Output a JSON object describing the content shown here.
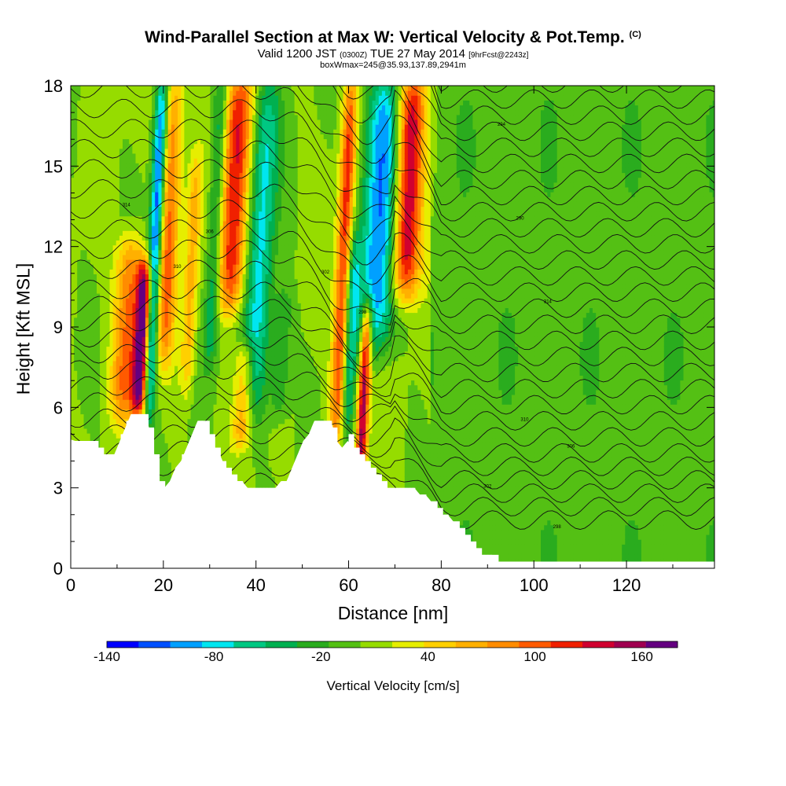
{
  "header": {
    "title": "Wind-Parallel Section at Max W: Vertical Velocity & Pot.Temp.",
    "title_mark": "(C)",
    "subtitle_a": "Valid 1200 JST",
    "subtitle_b": "(0300Z)",
    "subtitle_c": "TUE 27 May 2014",
    "subtitle_d": "[9hrFcst@2243z]",
    "subtitle_2": "boxWmax=245@35.93,137.89,2941m"
  },
  "chart_data": {
    "type": "heatmap",
    "xlabel": "Distance [nm]",
    "ylabel": "Height [Kft MSL]",
    "xlim": [
      0,
      139
    ],
    "ylim": [
      0,
      18
    ],
    "x_ticks": [
      0,
      20,
      40,
      60,
      80,
      100,
      120
    ],
    "y_ticks": [
      0,
      3,
      6,
      9,
      12,
      15,
      18
    ],
    "colorbar": {
      "label": "Vertical Velocity [cm/s]",
      "tick_labels": [
        "-140",
        "-80",
        "-20",
        "40",
        "100",
        "160"
      ],
      "tick_values": [
        -140,
        -80,
        -20,
        40,
        100,
        160
      ],
      "colors": [
        "#0000ff",
        "#0050ff",
        "#00a0ff",
        "#00e6f0",
        "#00c882",
        "#00b050",
        "#2aac1e",
        "#54c014",
        "#96dc00",
        "#e6ee00",
        "#ffd000",
        "#ffb000",
        "#ff8c00",
        "#ff5a00",
        "#f02000",
        "#d00030",
        "#a00050",
        "#640080"
      ],
      "range": [
        -140,
        180
      ]
    },
    "terrain_kft": [
      [
        0,
        4.8
      ],
      [
        4,
        4.8
      ],
      [
        6,
        4.5
      ],
      [
        9,
        4.0
      ],
      [
        11,
        5.0
      ],
      [
        13,
        5.8
      ],
      [
        16,
        5.8
      ],
      [
        17,
        5.2
      ],
      [
        19,
        3.3
      ],
      [
        21,
        3.0
      ],
      [
        23,
        3.8
      ],
      [
        26,
        4.8
      ],
      [
        28,
        5.8
      ],
      [
        31,
        4.6
      ],
      [
        34,
        3.5
      ],
      [
        38,
        3.0
      ],
      [
        44,
        3.0
      ],
      [
        47,
        3.4
      ],
      [
        50,
        4.6
      ],
      [
        53,
        5.5
      ],
      [
        56,
        5.5
      ],
      [
        58,
        4.4
      ],
      [
        60,
        4.9
      ],
      [
        62,
        4.2
      ],
      [
        64,
        4.0
      ],
      [
        66,
        3.5
      ],
      [
        68,
        3.0
      ],
      [
        73,
        3.0
      ],
      [
        78,
        2.5
      ],
      [
        82,
        1.8
      ],
      [
        86,
        1.0
      ],
      [
        89,
        0.5
      ],
      [
        93,
        0.3
      ],
      [
        139,
        0.3
      ]
    ],
    "updrafts": [
      {
        "x": 14.8,
        "w": 1.6,
        "bottom": 6.2,
        "top": 11.0,
        "amp": 175
      },
      {
        "x": 11.5,
        "w": 3.0,
        "bottom": 6.0,
        "top": 12.0,
        "amp": 90
      },
      {
        "x": 20.0,
        "w": 2.2,
        "bottom": 8.0,
        "top": 18.0,
        "amp": 90
      },
      {
        "x": 34.5,
        "w": 3.0,
        "bottom": 10.0,
        "top": 18.0,
        "amp": 125
      },
      {
        "x": 57.3,
        "w": 1.6,
        "bottom": 5.0,
        "top": 18.0,
        "amp": 115
      },
      {
        "x": 62.5,
        "w": 1.2,
        "bottom": 3.5,
        "top": 9.5,
        "amp": 150
      },
      {
        "x": 72.0,
        "w": 3.0,
        "bottom": 10.5,
        "top": 18.0,
        "amp": 145
      },
      {
        "x": 37.0,
        "w": 2.0,
        "bottom": 5.0,
        "top": 8.0,
        "amp": 70
      },
      {
        "x": 25.0,
        "w": 1.5,
        "bottom": 7.0,
        "top": 15.0,
        "amp": 60
      }
    ],
    "downdrafts": [
      {
        "x": 16.8,
        "w": 1.4,
        "bottom": 6.0,
        "top": 18.0,
        "amp": -130
      },
      {
        "x": 39.5,
        "w": 3.0,
        "bottom": 6.0,
        "top": 18.0,
        "amp": -80
      },
      {
        "x": 30.0,
        "w": 1.6,
        "bottom": 8.0,
        "top": 18.0,
        "amp": -60
      },
      {
        "x": 65.5,
        "w": 4.0,
        "bottom": 8.5,
        "top": 18.0,
        "amp": -110
      },
      {
        "x": 59.5,
        "w": 1.5,
        "bottom": 5.0,
        "top": 12.0,
        "amp": -60
      },
      {
        "x": 45.0,
        "w": 2.0,
        "bottom": 6.0,
        "top": 10.0,
        "amp": -40
      }
    ],
    "isentrope_labels": [
      "314",
      "310",
      "306",
      "302",
      "298",
      "294",
      "290"
    ]
  }
}
